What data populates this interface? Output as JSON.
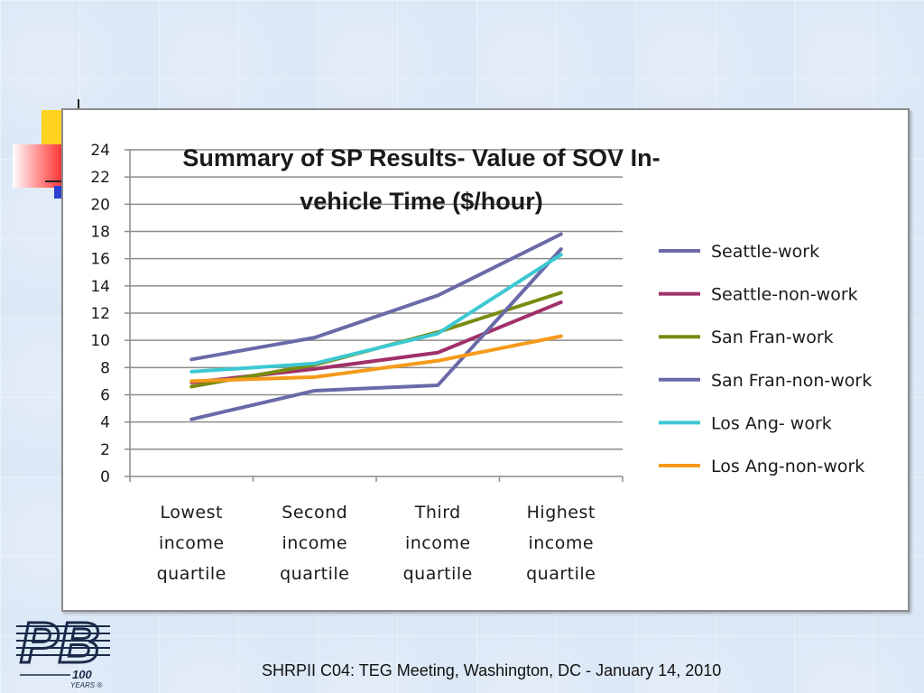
{
  "footer": {
    "text": "SHRPII C04: TEG Meeting, Washington, DC - January 14, 2010"
  },
  "logo": {
    "letters": "PB",
    "years": "100",
    "sub": "YEARS ®"
  },
  "colors": {
    "background": "#dbe8f6",
    "panel": "#ffffff",
    "grid": "#8c8c8c"
  },
  "chart_data": {
    "type": "line",
    "title": "Summary of SP Results- Value of SOV In-vehicle Time ($/hour)",
    "title_lines": [
      "Summary of SP Results- Value of SOV In-",
      "vehicle Time ($/hour)"
    ],
    "categories": [
      [
        "Lowest",
        "income",
        "quartile"
      ],
      [
        "Second",
        "income",
        "quartile"
      ],
      [
        "Third",
        "income",
        "quartile"
      ],
      [
        "Highest",
        "income",
        "quartile"
      ]
    ],
    "ylim": [
      0,
      24
    ],
    "yticks": [
      0,
      2,
      4,
      6,
      8,
      10,
      12,
      14,
      16,
      18,
      20,
      22,
      24
    ],
    "grid": true,
    "legend_position": "right",
    "series": [
      {
        "name": "Seattle-work",
        "color": "#6a6aa8",
        "values": [
          8.6,
          10.2,
          13.3,
          17.8
        ]
      },
      {
        "name": "Seattle-non-work",
        "color": "#a0306a",
        "values": [
          6.9,
          7.9,
          9.1,
          12.8
        ]
      },
      {
        "name": "San Fran-work",
        "color": "#7a8a10",
        "values": [
          6.6,
          8.2,
          10.6,
          13.5
        ]
      },
      {
        "name": "San Fran-non-work",
        "color": "#6a6aa8",
        "values": [
          4.2,
          6.3,
          6.7,
          16.7
        ]
      },
      {
        "name": "Los Ang- work",
        "color": "#3cc8d2",
        "values": [
          7.7,
          8.3,
          10.5,
          16.3
        ]
      },
      {
        "name": "Los Ang-non-work",
        "color": "#f59a1a",
        "values": [
          7.0,
          7.3,
          8.5,
          10.3
        ]
      }
    ]
  }
}
